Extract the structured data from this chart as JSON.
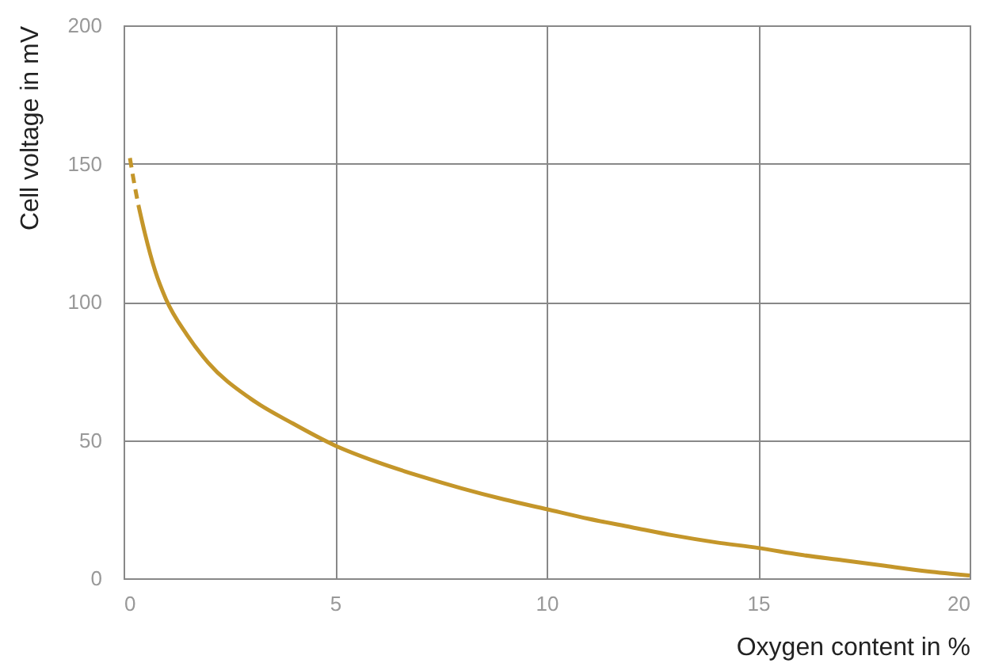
{
  "chart_data": {
    "type": "line",
    "xlabel": "Oxygen content in %",
    "ylabel": "Cell voltage in mV",
    "xlim": [
      0,
      20
    ],
    "ylim": [
      0,
      200
    ],
    "xticks": [
      0,
      5,
      10,
      15,
      20
    ],
    "yticks": [
      0,
      50,
      100,
      150,
      200
    ],
    "grid": true,
    "series": [
      {
        "color": "#c4962a",
        "line_style": "dashed",
        "x": [
          0.15,
          0.25,
          0.35
        ],
        "values": [
          152,
          143,
          135
        ]
      },
      {
        "color": "#c4962a",
        "line_style": "solid",
        "x": [
          0.35,
          0.5,
          0.75,
          1,
          1.5,
          2,
          3,
          4,
          5,
          6,
          7,
          8,
          9,
          10,
          11,
          12,
          13,
          14,
          15,
          16,
          17,
          18,
          19,
          20
        ],
        "values": [
          135,
          125,
          111,
          101,
          88,
          78,
          65,
          56,
          48,
          42,
          37,
          32.5,
          28.5,
          25,
          21.5,
          18.5,
          15.5,
          13,
          11,
          8.5,
          6.5,
          4.5,
          2.5,
          1
        ]
      }
    ]
  }
}
